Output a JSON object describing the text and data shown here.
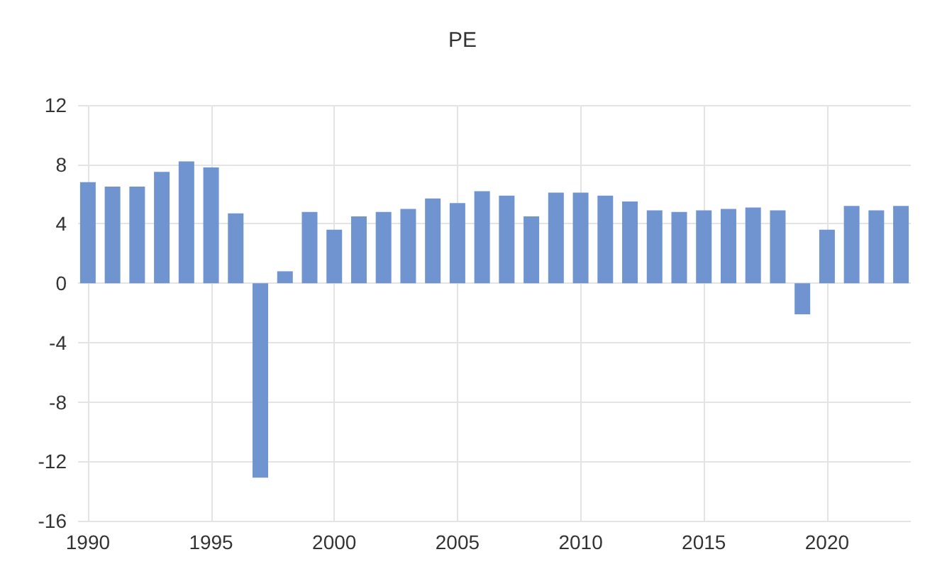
{
  "chart_data": {
    "type": "bar",
    "title": "PE",
    "x": [
      1990,
      1991,
      1992,
      1993,
      1994,
      1995,
      1996,
      1997,
      1998,
      1999,
      2000,
      2001,
      2002,
      2003,
      2004,
      2005,
      2006,
      2007,
      2008,
      2009,
      2010,
      2011,
      2012,
      2013,
      2014,
      2015,
      2016,
      2017,
      2018,
      2019,
      2020,
      2021,
      2022,
      2023
    ],
    "values": [
      6.8,
      6.5,
      6.5,
      7.5,
      8.2,
      7.8,
      4.7,
      -13.1,
      0.8,
      4.8,
      3.6,
      4.5,
      4.8,
      5.0,
      5.7,
      5.4,
      6.2,
      5.9,
      4.5,
      6.1,
      6.1,
      5.9,
      5.5,
      4.9,
      4.8,
      4.9,
      5.0,
      5.1,
      4.9,
      -2.1,
      3.6,
      5.2,
      4.9,
      5.2
    ],
    "color": "#7094d0",
    "xlim": [
      1989.6,
      2023.4
    ],
    "xticks": [
      1990,
      1995,
      2000,
      2005,
      2010,
      2015,
      2020
    ],
    "ylim": [
      -16,
      12
    ],
    "yticks": [
      -16,
      -12,
      -8,
      -4,
      0,
      4,
      8,
      12
    ],
    "grid": true
  }
}
